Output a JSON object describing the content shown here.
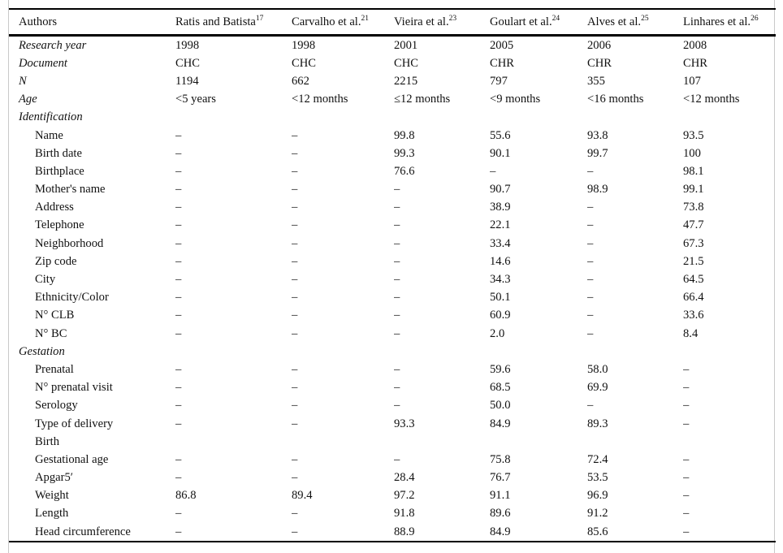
{
  "colors": {
    "rule": "#000000",
    "frame_edge": "#c9c9c9",
    "text": "#111111",
    "background": "#ffffff"
  },
  "missing_value_glyph": "–",
  "table": {
    "columns": [
      {
        "label": "Authors",
        "sup": ""
      },
      {
        "label": "Ratis and Batista",
        "sup": "17"
      },
      {
        "label": "Carvalho et al.",
        "sup": "21"
      },
      {
        "label": "Vieira et al.",
        "sup": "23"
      },
      {
        "label": "Goulart et al.",
        "sup": "24"
      },
      {
        "label": "Alves et al.",
        "sup": "25"
      },
      {
        "label": "Linhares et al.",
        "sup": "26"
      }
    ],
    "rows": [
      {
        "label": "Research year",
        "style": "italic",
        "values": [
          "1998",
          "1998",
          "2001",
          "2005",
          "2006",
          "2008"
        ]
      },
      {
        "label": "Document",
        "style": "italic",
        "values": [
          "CHC",
          "CHC",
          "CHC",
          "CHR",
          "CHR",
          "CHR"
        ]
      },
      {
        "label": "N",
        "style": "italic",
        "values": [
          "1194",
          "662",
          "2215",
          "797",
          "355",
          "107"
        ]
      },
      {
        "label": "Age",
        "style": "italic",
        "values": [
          "<5 years",
          "<12 months",
          "≤12 months",
          "<9 months",
          "<16 months",
          "<12 months"
        ]
      },
      {
        "label": "Identification",
        "style": "section",
        "values": [
          "",
          "",
          "",
          "",
          "",
          ""
        ]
      },
      {
        "label": "Name",
        "style": "indent",
        "values": [
          "–",
          "–",
          "99.8",
          "55.6",
          "93.8",
          "93.5"
        ]
      },
      {
        "label": "Birth date",
        "style": "indent",
        "values": [
          "–",
          "–",
          "99.3",
          "90.1",
          "99.7",
          "100"
        ]
      },
      {
        "label": "Birthplace",
        "style": "indent",
        "values": [
          "–",
          "–",
          "76.6",
          "–",
          "–",
          "98.1"
        ]
      },
      {
        "label": "Mother's name",
        "style": "indent",
        "values": [
          "–",
          "–",
          "–",
          "90.7",
          "98.9",
          "99.1"
        ]
      },
      {
        "label": "Address",
        "style": "indent",
        "values": [
          "–",
          "–",
          "–",
          "38.9",
          "–",
          "73.8"
        ]
      },
      {
        "label": "Telephone",
        "style": "indent",
        "values": [
          "–",
          "–",
          "–",
          "22.1",
          "–",
          "47.7"
        ]
      },
      {
        "label": "Neighborhood",
        "style": "indent",
        "values": [
          "–",
          "–",
          "–",
          "33.4",
          "–",
          "67.3"
        ]
      },
      {
        "label": "Zip code",
        "style": "indent",
        "values": [
          "–",
          "–",
          "–",
          "14.6",
          "–",
          "21.5"
        ]
      },
      {
        "label": "City",
        "style": "indent",
        "values": [
          "–",
          "–",
          "–",
          "34.3",
          "–",
          "64.5"
        ]
      },
      {
        "label": "Ethnicity/Color",
        "style": "indent",
        "values": [
          "–",
          "–",
          "–",
          "50.1",
          "–",
          "66.4"
        ]
      },
      {
        "label": "N° CLB",
        "style": "indent",
        "values": [
          "–",
          "–",
          "–",
          "60.9",
          "–",
          "33.6"
        ]
      },
      {
        "label": "N° BC",
        "style": "indent",
        "values": [
          "–",
          "–",
          "–",
          "2.0",
          "–",
          "8.4"
        ]
      },
      {
        "label": "Gestation",
        "style": "section",
        "values": [
          "",
          "",
          "",
          "",
          "",
          ""
        ]
      },
      {
        "label": "Prenatal",
        "style": "indent",
        "values": [
          "–",
          "–",
          "–",
          "59.6",
          "58.0",
          "–"
        ]
      },
      {
        "label": "N° prenatal visit",
        "style": "indent",
        "values": [
          "–",
          "–",
          "–",
          "68.5",
          "69.9",
          "–"
        ]
      },
      {
        "label": "Serology",
        "style": "indent",
        "values": [
          "–",
          "–",
          "–",
          "50.0",
          "–",
          "–"
        ]
      },
      {
        "label": "Type of delivery",
        "style": "indent",
        "values": [
          "–",
          "–",
          "93.3",
          "84.9",
          "89.3",
          "–"
        ]
      },
      {
        "label": "Birth",
        "style": "indent",
        "values": [
          "",
          "",
          "",
          "",
          "",
          ""
        ]
      },
      {
        "label": "Gestational age",
        "style": "indent",
        "values": [
          "–",
          "–",
          "–",
          "75.8",
          "72.4",
          "–"
        ]
      },
      {
        "label": "Apgar5′",
        "style": "indent",
        "values": [
          "–",
          "–",
          "28.4",
          "76.7",
          "53.5",
          "–"
        ]
      },
      {
        "label": "Weight",
        "style": "indent",
        "values": [
          "86.8",
          "89.4",
          "97.2",
          "91.1",
          "96.9",
          "–"
        ]
      },
      {
        "label": "Length",
        "style": "indent",
        "values": [
          "–",
          "–",
          "91.8",
          "89.6",
          "91.2",
          "–"
        ]
      },
      {
        "label": "Head circumference",
        "style": "indent",
        "values": [
          "–",
          "–",
          "88.9",
          "84.9",
          "85.6",
          "–"
        ]
      }
    ]
  }
}
